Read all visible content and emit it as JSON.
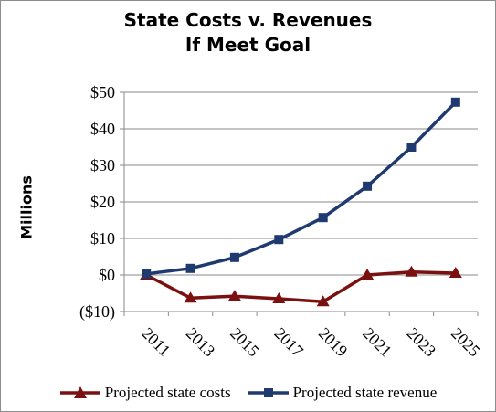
{
  "chart_data": {
    "type": "line",
    "title": [
      "State Costs v. Revenues",
      "If Meet Goal"
    ],
    "ylabel": "Millions",
    "xlabel": "",
    "categories": [
      "2011",
      "2013",
      "2015",
      "2017",
      "2019",
      "2021",
      "2023",
      "2025"
    ],
    "y_tick_labels": [
      "$50",
      "$40",
      "$30",
      "$20",
      "$10",
      "$0",
      "($10)"
    ],
    "y_ticks": [
      50,
      40,
      30,
      20,
      10,
      0,
      -10
    ],
    "ylim": [
      -10,
      50
    ],
    "grid": true,
    "legend_position": "bottom",
    "series": [
      {
        "name": "Projected state costs",
        "values": [
          0,
          -6.3,
          -5.8,
          -6.5,
          -7.3,
          0,
          0.8,
          0.5
        ],
        "color": "#7b1010",
        "marker": "triangle"
      },
      {
        "name": "Projected state revenue",
        "values": [
          0.3,
          1.8,
          4.8,
          9.7,
          15.7,
          24.3,
          35,
          47.3
        ],
        "color": "#1f3a6e",
        "marker": "square"
      }
    ]
  }
}
